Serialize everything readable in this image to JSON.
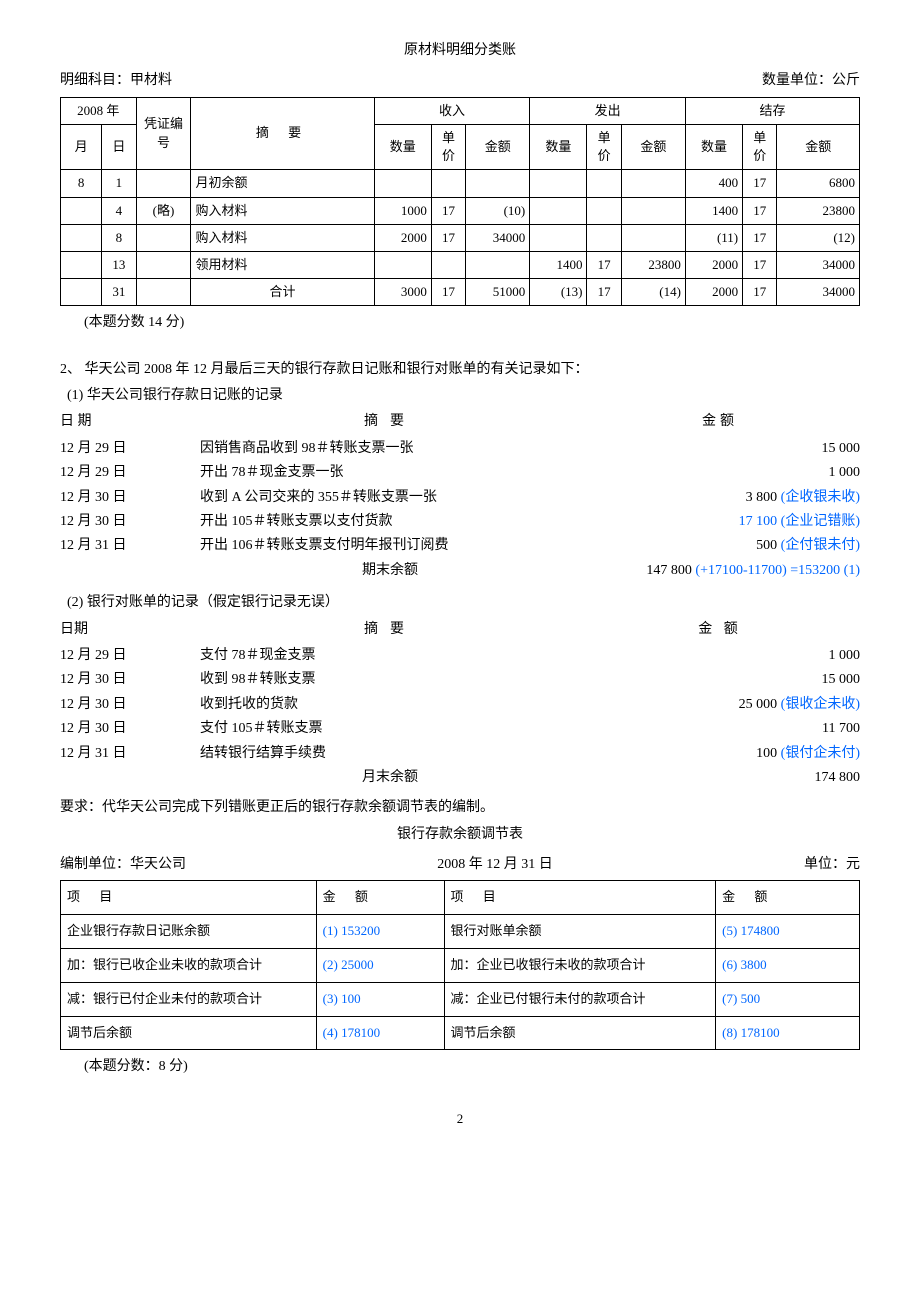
{
  "ledger": {
    "title": "原材料明细分类账",
    "subject_label": "明细科目：甲材料",
    "unit_label": "数量单位：公斤",
    "year_header": "2008 年",
    "voucher_header": "凭证编号",
    "desc_header": "摘            要",
    "in_header": "收入",
    "out_header": "发出",
    "bal_header": "结存",
    "month_h": "月",
    "day_h": "日",
    "qty_h": "数量",
    "price_h": "单价",
    "amt_h": "金额",
    "rows": [
      {
        "m": "8",
        "d": "1",
        "v": "",
        "desc": "月初余额",
        "iq": "",
        "ip": "",
        "ia": "",
        "oq": "",
        "op": "",
        "oa": "",
        "bq": "400",
        "bp": "17",
        "ba": "6800"
      },
      {
        "m": "",
        "d": "4",
        "v": "(略)",
        "desc": "购入材料",
        "iq": "1000",
        "ip": "17",
        "ia": "(10)",
        "oq": "",
        "op": "",
        "oa": "",
        "bq": "1400",
        "bp": "17",
        "ba": "23800"
      },
      {
        "m": "",
        "d": "8",
        "v": "",
        "desc": "购入材料",
        "iq": "2000",
        "ip": "17",
        "ia": "34000",
        "oq": "",
        "op": "",
        "oa": "",
        "bq": "(11)",
        "bp": "17",
        "ba": "(12)"
      },
      {
        "m": "",
        "d": "13",
        "v": "",
        "desc": "领用材料",
        "iq": "",
        "ip": "",
        "ia": "",
        "oq": "1400",
        "op": "17",
        "oa": "23800",
        "bq": "2000",
        "bp": "17",
        "ba": "34000"
      },
      {
        "m": "",
        "d": "31",
        "v": "",
        "desc": "合计",
        "iq": "3000",
        "ip": "17",
        "ia": "51000",
        "oq": "(13)",
        "op": "17",
        "oa": "(14)",
        "bq": "2000",
        "bp": "17",
        "ba": "34000"
      }
    ],
    "note": "(本题分数 14 分)"
  },
  "q2": {
    "intro": "2、 华天公司 2008 年 12 月最后三天的银行存款日记账和银行对账单的有关记录如下：",
    "part1_title": "(1) 华天公司银行存款日记账的记录",
    "date_h": "日 期",
    "desc_h": "摘要",
    "amt_h": "金额",
    "part1_rows": [
      {
        "date": "12 月 29 日",
        "desc": "因销售商品收到 98＃转账支票一张",
        "amt": "15 000",
        "blue": ""
      },
      {
        "date": "12 月 29 日",
        "desc": "开出 78＃现金支票一张",
        "amt": "1 000",
        "blue": ""
      },
      {
        "date": "12 月 30 日",
        "desc": "收到 A 公司交来的 355＃转账支票一张",
        "amt": "3 800",
        "blue": "(企收银未收)"
      },
      {
        "date": "12 月 30 日",
        "desc": "开出 105＃转账支票以支付货款",
        "amt": "",
        "blue": "17 100 (企业记错账)"
      },
      {
        "date": "12 月 31 日",
        "desc": "开出 106＃转账支票支付明年报刊订阅费",
        "amt": "500",
        "blue": "(企付银未付)"
      }
    ],
    "part1_end_label": "期末余额",
    "part1_end_amt": "147 800",
    "part1_end_blue": "(+17100-11700) =153200 (1)",
    "part2_title": "(2) 银行对账单的记录（假定银行记录无误）",
    "date_h2": "日期",
    "desc_h2": "摘要",
    "amt_h2": "金 额",
    "part2_rows": [
      {
        "date": "12 月 29 日",
        "desc": "支付 78＃现金支票",
        "amt": "1 000",
        "blue": ""
      },
      {
        "date": "12 月 30 日",
        "desc": "收到 98＃转账支票",
        "amt": "15 000",
        "blue": ""
      },
      {
        "date": "12 月 30 日",
        "desc": "收到托收的货款",
        "amt": "25 000",
        "blue": "(银收企未收)"
      },
      {
        "date": "12 月 30 日",
        "desc": "支付 105＃转账支票",
        "amt": "11 700",
        "blue": ""
      },
      {
        "date": "12 月 31 日",
        "desc": "结转银行结算手续费",
        "amt": "100",
        "blue": "(银付企未付)"
      }
    ],
    "part2_end_label": "月末余额",
    "part2_end_amt": "174 800",
    "requirement": "要求：代华天公司完成下列错账更正后的银行存款余额调节表的编制。"
  },
  "recon": {
    "title": "银行存款余额调节表",
    "unit_label": "编制单位：华天公司",
    "date_label": "2008 年 12 月 31 日",
    "currency_label": "单位：元",
    "col_item": "项    目",
    "col_amt": "金    额",
    "rows": [
      {
        "l": "企业银行存款日记账余额",
        "la": "(1) 153200",
        "r": "银行对账单余额",
        "ra": "(5) 174800"
      },
      {
        "l": "加：银行已收企业未收的款项合计",
        "la": "(2) 25000",
        "r": "加：企业已收银行未收的款项合计",
        "ra": "(6) 3800"
      },
      {
        "l": "减：银行已付企业未付的款项合计",
        "la": "(3) 100",
        "r": "减：企业已付银行未付的款项合计",
        "ra": "(7) 500"
      },
      {
        "l": "调节后余额",
        "la": "(4) 178100",
        "r": "调节后余额",
        "ra": "(8) 178100"
      }
    ],
    "note": "(本题分数：8 分)"
  },
  "page_number": "2"
}
